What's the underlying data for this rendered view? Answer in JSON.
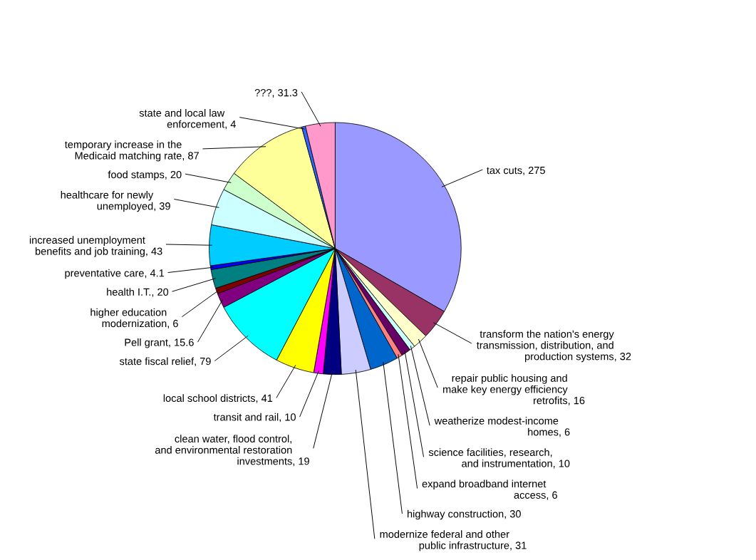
{
  "chart_data": {
    "type": "pie",
    "categories": [
      "tax cuts",
      "transform the nation's energy\ntransmission, distribution, and\nproduction systems",
      "repair public housing and\nmake key energy efficiency\nretrofits",
      "weatherize modest-income\nhomes",
      "science facilities, research,\nand instrumentation",
      "expand broadband internet\naccess",
      "highway construction",
      "modernize federal and other\npublic infrastructure",
      "clean water, flood control,\nand environmental restoration\ninvestments",
      "transit and rail",
      "local school districts",
      "state fiscal relief",
      "Pell grant",
      "higher education\nmodernization",
      "health I.T.",
      "preventative care",
      "increased unemployment\nbenefits and job training",
      "healthcare for newly\nunemployed",
      "food stamps",
      "temporary increase in the\nMedicaid matching rate",
      "state and local law\nenforcement",
      "???"
    ],
    "values": [
      275,
      32,
      16,
      6,
      10,
      6,
      30,
      31,
      19,
      10,
      41,
      79,
      15.6,
      6,
      20,
      4.1,
      43,
      39,
      20,
      87,
      4,
      31.3
    ],
    "colors": [
      "#9999ff",
      "#993366",
      "#ffffcc",
      "#ccffff",
      "#660066",
      "#ff8080",
      "#0066cc",
      "#ccccff",
      "#000080",
      "#ff00ff",
      "#ffff00",
      "#00ffff",
      "#800080",
      "#800000",
      "#008080",
      "#0000ff",
      "#00ccff",
      "#ccffff",
      "#ccffcc",
      "#ffff99",
      "#3366ff",
      "#ff99cc"
    ],
    "value_labels": [
      ", 275",
      ", 32",
      ", 16",
      ", 6",
      ", 10",
      ", 6",
      ", 30",
      ", 31",
      ", 19",
      ", 10",
      ", 41",
      ", 79",
      ", 15.6",
      ", 6",
      ", 20",
      ", 4.1",
      ", 43",
      ", 39",
      ", 20",
      ", 87",
      ", 4",
      ", 31.3"
    ]
  }
}
